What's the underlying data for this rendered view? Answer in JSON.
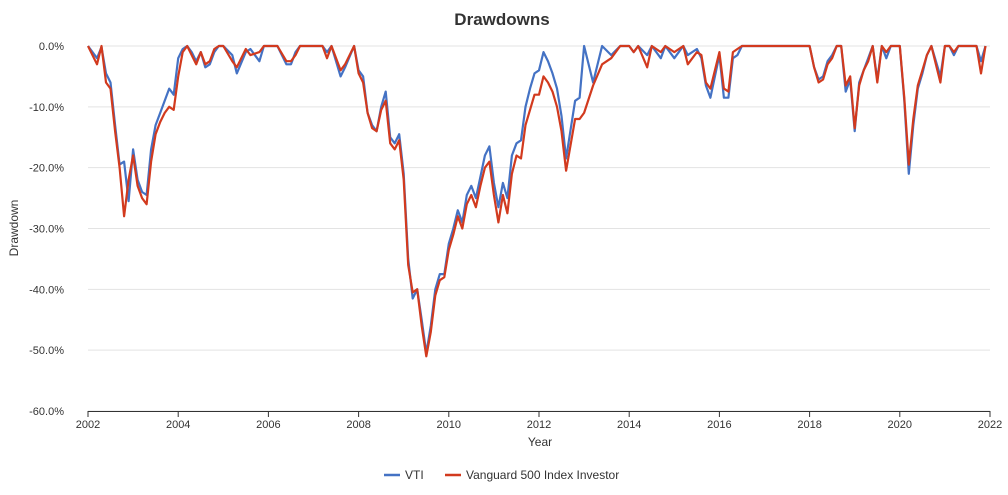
{
  "chart_data": {
    "type": "line",
    "title": "Drawdowns",
    "xlabel": "Year",
    "ylabel": "Drawdown",
    "xlim": [
      2002,
      2022
    ],
    "ylim": [
      -60,
      0
    ],
    "x_ticks": [
      2002,
      2004,
      2006,
      2008,
      2010,
      2012,
      2014,
      2016,
      2018,
      2020,
      2022
    ],
    "x_tick_labels": [
      "2002",
      "2004",
      "2006",
      "2008",
      "2010",
      "2012",
      "2014",
      "2016",
      "2018",
      "2020",
      "2022"
    ],
    "y_ticks": [
      0,
      -10,
      -20,
      -30,
      -40,
      -50,
      -60
    ],
    "y_tick_labels": [
      "0.0%",
      "-10.0%",
      "-20.0%",
      "-30.0%",
      "-40.0%",
      "-50.0%",
      "-60.0%"
    ],
    "grid": true,
    "legend_position": "bottom-center",
    "series": [
      {
        "name": "VTI",
        "color": "#4472c4",
        "x": [
          2002.0,
          2002.2,
          2002.3,
          2002.4,
          2002.5,
          2002.6,
          2002.7,
          2002.8,
          2002.9,
          2003.0,
          2003.1,
          2003.2,
          2003.3,
          2003.4,
          2003.5,
          2003.6,
          2003.7,
          2003.8,
          2003.9,
          2004.0,
          2004.1,
          2004.2,
          2004.3,
          2004.4,
          2004.5,
          2004.6,
          2004.7,
          2004.8,
          2004.9,
          2005.0,
          2005.2,
          2005.3,
          2005.5,
          2005.6,
          2005.8,
          2005.9,
          2006.0,
          2006.2,
          2006.4,
          2006.5,
          2006.6,
          2006.7,
          2006.9,
          2007.0,
          2007.2,
          2007.3,
          2007.4,
          2007.6,
          2007.7,
          2007.9,
          2008.0,
          2008.1,
          2008.2,
          2008.3,
          2008.4,
          2008.5,
          2008.6,
          2008.7,
          2008.8,
          2008.9,
          2009.0,
          2009.1,
          2009.2,
          2009.3,
          2009.4,
          2009.5,
          2009.6,
          2009.7,
          2009.8,
          2009.9,
          2010.0,
          2010.1,
          2010.2,
          2010.3,
          2010.4,
          2010.5,
          2010.6,
          2010.7,
          2010.8,
          2010.9,
          2011.0,
          2011.1,
          2011.2,
          2011.3,
          2011.4,
          2011.5,
          2011.6,
          2011.7,
          2011.8,
          2011.9,
          2012.0,
          2012.1,
          2012.2,
          2012.3,
          2012.4,
          2012.5,
          2012.6,
          2012.8,
          2012.9,
          2013.0,
          2013.2,
          2013.4,
          2013.6,
          2013.8,
          2014.0,
          2014.1,
          2014.2,
          2014.4,
          2014.5,
          2014.7,
          2014.8,
          2015.0,
          2015.2,
          2015.3,
          2015.5,
          2015.6,
          2015.7,
          2015.8,
          2016.0,
          2016.1,
          2016.2,
          2016.3,
          2016.4,
          2016.5,
          2016.7,
          2016.9,
          2017.0,
          2017.5,
          2018.0,
          2018.1,
          2018.2,
          2018.3,
          2018.4,
          2018.5,
          2018.6,
          2018.7,
          2018.8,
          2018.9,
          2019.0,
          2019.1,
          2019.2,
          2019.3,
          2019.4,
          2019.5,
          2019.6,
          2019.7,
          2019.8,
          2019.9,
          2020.0,
          2020.1,
          2020.2,
          2020.3,
          2020.4,
          2020.5,
          2020.6,
          2020.7,
          2020.8,
          2020.9,
          2021.0,
          2021.1,
          2021.2,
          2021.3,
          2021.5,
          2021.7,
          2021.8,
          2021.9
        ],
        "values": [
          0.0,
          -2.0,
          -0.2,
          -4.5,
          -6.0,
          -13.0,
          -19.5,
          -19.0,
          -25.5,
          -17.0,
          -22.0,
          -24.0,
          -24.5,
          -17.0,
          -13.0,
          -11.0,
          -9.0,
          -7.0,
          -8.0,
          -2.0,
          -0.5,
          0.0,
          -1.0,
          -2.5,
          -1.0,
          -3.5,
          -3.0,
          -1.0,
          0.0,
          0.0,
          -1.5,
          -4.5,
          -1.0,
          -0.5,
          -2.5,
          0.0,
          0.0,
          0.0,
          -3.0,
          -3.0,
          -1.0,
          0.0,
          0.0,
          0.0,
          0.0,
          -1.0,
          0.0,
          -5.0,
          -3.5,
          0.0,
          -4.0,
          -5.0,
          -11.0,
          -13.0,
          -14.0,
          -10.0,
          -7.5,
          -15.0,
          -16.0,
          -14.5,
          -21.0,
          -35.0,
          -41.5,
          -40.0,
          -45.0,
          -50.5,
          -46.0,
          -40.0,
          -37.5,
          -37.5,
          -32.5,
          -30.0,
          -27.0,
          -29.0,
          -24.5,
          -23.0,
          -25.0,
          -21.5,
          -18.0,
          -16.5,
          -22.5,
          -26.5,
          -22.5,
          -25.0,
          -18.0,
          -16.0,
          -15.5,
          -10.0,
          -7.0,
          -4.5,
          -4.0,
          -1.0,
          -2.5,
          -4.5,
          -7.0,
          -11.5,
          -18.5,
          -9.0,
          -8.5,
          0.0,
          -6.0,
          0.0,
          -1.5,
          0.0,
          0.0,
          -1.0,
          0.0,
          -1.5,
          0.0,
          -2.0,
          0.0,
          -2.0,
          0.0,
          -1.5,
          -0.5,
          -2.0,
          -6.5,
          -8.5,
          -1.5,
          -8.5,
          -8.5,
          -2.0,
          -1.5,
          0.0,
          0.0,
          0.0,
          0.0,
          0.0,
          0.0,
          -3.5,
          -5.5,
          -5.0,
          -2.5,
          -1.5,
          0.0,
          0.0,
          -7.5,
          -5.5,
          -14.0,
          -6.0,
          -4.0,
          -2.0,
          0.0,
          -5.5,
          0.0,
          -2.0,
          0.0,
          0.0,
          0.0,
          -9.0,
          -21.0,
          -13.0,
          -7.0,
          -4.5,
          -1.5,
          0.0,
          -2.5,
          -5.0,
          0.0,
          0.0,
          -1.5,
          0.0,
          0.0,
          0.0,
          -2.5,
          0.0
        ]
      },
      {
        "name": "Vanguard 500 Index Investor",
        "color": "#d23a1e",
        "x": [
          2002.0,
          2002.2,
          2002.3,
          2002.4,
          2002.5,
          2002.6,
          2002.7,
          2002.8,
          2002.9,
          2003.0,
          2003.1,
          2003.2,
          2003.3,
          2003.4,
          2003.5,
          2003.6,
          2003.7,
          2003.8,
          2003.9,
          2004.0,
          2004.1,
          2004.2,
          2004.3,
          2004.4,
          2004.5,
          2004.6,
          2004.7,
          2004.8,
          2004.9,
          2005.0,
          2005.2,
          2005.3,
          2005.5,
          2005.6,
          2005.8,
          2005.9,
          2006.0,
          2006.2,
          2006.4,
          2006.5,
          2006.6,
          2006.7,
          2006.9,
          2007.0,
          2007.2,
          2007.3,
          2007.4,
          2007.6,
          2007.7,
          2007.9,
          2008.0,
          2008.1,
          2008.2,
          2008.3,
          2008.4,
          2008.5,
          2008.6,
          2008.7,
          2008.8,
          2008.9,
          2009.0,
          2009.1,
          2009.2,
          2009.3,
          2009.4,
          2009.5,
          2009.6,
          2009.7,
          2009.8,
          2009.9,
          2010.0,
          2010.1,
          2010.2,
          2010.3,
          2010.4,
          2010.5,
          2010.6,
          2010.7,
          2010.8,
          2010.9,
          2011.0,
          2011.1,
          2011.2,
          2011.3,
          2011.4,
          2011.5,
          2011.6,
          2011.7,
          2011.8,
          2011.9,
          2012.0,
          2012.1,
          2012.2,
          2012.3,
          2012.4,
          2012.5,
          2012.6,
          2012.8,
          2012.9,
          2013.0,
          2013.2,
          2013.4,
          2013.6,
          2013.8,
          2014.0,
          2014.1,
          2014.2,
          2014.4,
          2014.5,
          2014.7,
          2014.8,
          2015.0,
          2015.2,
          2015.3,
          2015.5,
          2015.6,
          2015.7,
          2015.8,
          2016.0,
          2016.1,
          2016.2,
          2016.3,
          2016.4,
          2016.5,
          2016.7,
          2016.9,
          2017.0,
          2017.5,
          2018.0,
          2018.1,
          2018.2,
          2018.3,
          2018.4,
          2018.5,
          2018.6,
          2018.7,
          2018.8,
          2018.9,
          2019.0,
          2019.1,
          2019.2,
          2019.3,
          2019.4,
          2019.5,
          2019.6,
          2019.7,
          2019.8,
          2019.9,
          2020.0,
          2020.1,
          2020.2,
          2020.3,
          2020.4,
          2020.5,
          2020.6,
          2020.7,
          2020.8,
          2020.9,
          2021.0,
          2021.1,
          2021.2,
          2021.3,
          2021.5,
          2021.7,
          2021.8,
          2021.9
        ],
        "values": [
          0.0,
          -3.0,
          0.0,
          -6.0,
          -7.0,
          -14.0,
          -20.0,
          -28.0,
          -22.0,
          -18.0,
          -23.0,
          -25.0,
          -26.0,
          -19.0,
          -14.5,
          -12.5,
          -11.0,
          -10.0,
          -10.5,
          -5.0,
          -1.0,
          0.0,
          -1.5,
          -3.0,
          -1.0,
          -3.0,
          -2.5,
          -0.5,
          0.0,
          0.0,
          -2.5,
          -3.5,
          -0.5,
          -1.5,
          -1.0,
          0.0,
          0.0,
          0.0,
          -2.5,
          -2.5,
          -1.5,
          0.0,
          0.0,
          0.0,
          0.0,
          -2.0,
          0.0,
          -4.0,
          -3.0,
          0.0,
          -4.5,
          -6.0,
          -11.0,
          -13.5,
          -14.0,
          -10.5,
          -9.0,
          -16.0,
          -17.0,
          -15.5,
          -22.0,
          -36.0,
          -40.5,
          -40.0,
          -46.0,
          -51.0,
          -47.0,
          -41.0,
          -38.5,
          -38.0,
          -33.5,
          -31.0,
          -28.0,
          -30.0,
          -26.0,
          -24.5,
          -26.5,
          -23.0,
          -20.0,
          -19.0,
          -24.5,
          -29.0,
          -24.5,
          -27.5,
          -21.0,
          -18.0,
          -18.5,
          -13.0,
          -10.5,
          -8.0,
          -8.0,
          -5.0,
          -6.0,
          -7.5,
          -10.0,
          -14.0,
          -20.5,
          -12.0,
          -12.0,
          -11.0,
          -6.5,
          -3.0,
          -2.0,
          0.0,
          0.0,
          -1.0,
          0.0,
          -3.5,
          0.0,
          -1.0,
          0.0,
          -1.0,
          0.0,
          -3.0,
          -1.0,
          -1.5,
          -6.0,
          -7.0,
          -1.0,
          -7.0,
          -7.5,
          -1.0,
          -0.5,
          0.0,
          0.0,
          0.0,
          0.0,
          0.0,
          0.0,
          -3.5,
          -6.0,
          -5.5,
          -3.0,
          -2.0,
          0.0,
          0.0,
          -6.5,
          -5.0,
          -13.5,
          -6.5,
          -4.0,
          -2.5,
          0.0,
          -6.0,
          0.0,
          -1.0,
          0.0,
          0.0,
          0.0,
          -8.5,
          -19.5,
          -12.0,
          -6.5,
          -4.0,
          -1.5,
          0.0,
          -3.0,
          -6.0,
          0.0,
          0.0,
          -1.0,
          0.0,
          0.0,
          0.0,
          -4.5,
          0.0
        ]
      }
    ]
  }
}
